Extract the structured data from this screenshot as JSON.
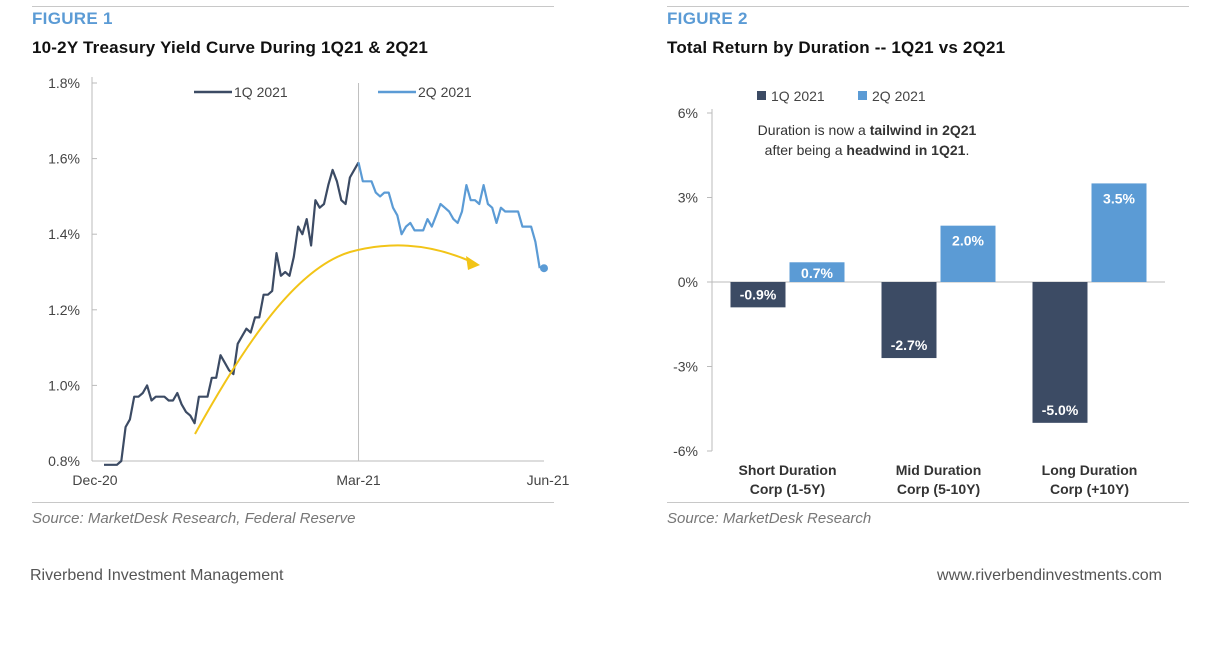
{
  "colors": {
    "q1": "#3c4b64",
    "q2": "#5b9bd5",
    "arrow": "#f2c417",
    "figure_label": "#5b9bd5"
  },
  "figure1": {
    "label": "FIGURE 1",
    "title": "10-2Y Treasury Yield Curve During 1Q21 & 2Q21",
    "source": "Source: MarketDesk Research, Federal Reserve",
    "chart_data": {
      "type": "line",
      "title": "10-2Y Treasury Yield Curve During 1Q21 & 2Q21",
      "xlabel": "",
      "ylabel": "",
      "x_tick_labels": [
        "Dec-20",
        "Mar-21",
        "Jun-21"
      ],
      "y_tick_labels": [
        "0.8%",
        "1.0%",
        "1.2%",
        "1.4%",
        "1.6%",
        "1.8%"
      ],
      "ylim": [
        0.8,
        1.8
      ],
      "grid": true,
      "legend": "top",
      "divider_at_index": 60,
      "series": [
        {
          "name": "1Q 2021",
          "values": [
            0.79,
            0.79,
            0.79,
            0.79,
            0.8,
            0.89,
            0.91,
            0.97,
            0.97,
            0.98,
            1.0,
            0.96,
            0.97,
            0.97,
            0.97,
            0.96,
            0.96,
            0.98,
            0.95,
            0.93,
            0.92,
            0.9,
            0.97,
            0.97,
            0.97,
            1.02,
            1.02,
            1.08,
            1.06,
            1.04,
            1.03,
            1.11,
            1.13,
            1.15,
            1.14,
            1.18,
            1.18,
            1.24,
            1.24,
            1.25,
            1.35,
            1.29,
            1.3,
            1.29,
            1.34,
            1.42,
            1.4,
            1.44,
            1.37,
            1.49,
            1.47,
            1.48,
            1.53,
            1.57,
            1.54,
            1.49,
            1.48,
            1.55,
            1.57,
            1.59
          ]
        },
        {
          "name": "2Q 2021",
          "values": [
            1.59,
            1.54,
            1.54,
            1.54,
            1.51,
            1.5,
            1.51,
            1.51,
            1.47,
            1.45,
            1.4,
            1.42,
            1.43,
            1.41,
            1.41,
            1.41,
            1.44,
            1.42,
            1.45,
            1.48,
            1.47,
            1.46,
            1.44,
            1.43,
            1.46,
            1.53,
            1.49,
            1.49,
            1.48,
            1.53,
            1.48,
            1.47,
            1.43,
            1.47,
            1.46,
            1.46,
            1.46,
            1.46,
            1.42,
            1.42,
            1.42,
            1.38,
            1.31
          ]
        }
      ],
      "annotations": [
        "trend-arrow"
      ]
    },
    "legend": {
      "q1": "1Q 2021",
      "q2": "2Q 2021"
    }
  },
  "figure2": {
    "label": "FIGURE 2",
    "title": "Total Return by Duration -- 1Q21 vs 2Q21",
    "source": "Source: MarketDesk Research",
    "annotation": {
      "line1_pre": "Duration is now a ",
      "line1_bold": "tailwind in 2Q21",
      "line2_pre": "after being a ",
      "line2_bold": "headwind in 1Q21",
      "line2_post": "."
    },
    "legend": {
      "q1": "1Q 2021",
      "q2": "2Q 2021"
    },
    "chart_data": {
      "type": "bar",
      "title": "Total Return by Duration -- 1Q21 vs 2Q21",
      "xlabel": "",
      "ylabel": "",
      "categories": [
        [
          "Short Duration",
          "Corp (1-5Y)"
        ],
        [
          "Mid Duration",
          "Corp (5-10Y)"
        ],
        [
          "Long Duration",
          "Corp (+10Y)"
        ]
      ],
      "ylim": [
        -6,
        6
      ],
      "y_tick_labels": [
        "6%",
        "3%",
        "0%",
        "-3%",
        "-6%"
      ],
      "y_ticks": [
        6,
        3,
        0,
        -3,
        -6
      ],
      "legend": "top",
      "series": [
        {
          "name": "1Q 2021",
          "values": [
            -0.9,
            -2.7,
            -5.0
          ],
          "labels": [
            "-0.9%",
            "-2.7%",
            "-5.0%"
          ]
        },
        {
          "name": "2Q 2021",
          "values": [
            0.7,
            2.0,
            3.5
          ],
          "labels": [
            "0.7%",
            "2.0%",
            "3.5%"
          ]
        }
      ]
    }
  },
  "footer": {
    "left": "Riverbend Investment Management",
    "right": "www.riverbendinvestments.com"
  }
}
